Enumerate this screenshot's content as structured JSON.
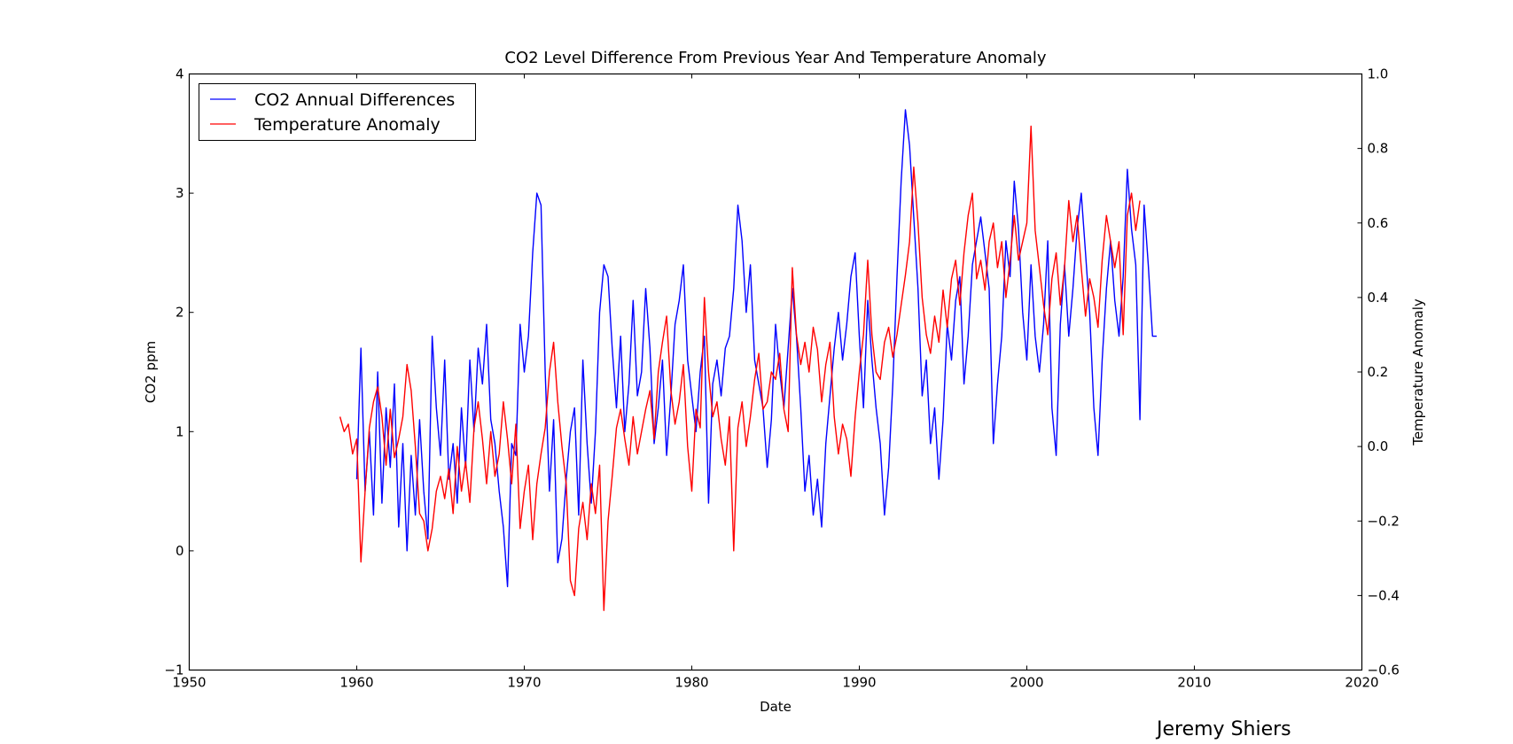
{
  "chart_data": {
    "type": "line",
    "title": "CO2 Level Difference From Previous Year And Temperature Anomaly",
    "xlabel": "Date",
    "ylabel": "CO2 ppm",
    "ylabel_right": "Temperature Anomaly",
    "xlim": [
      1950,
      2020
    ],
    "ylim": [
      -1,
      4
    ],
    "ylim_right": [
      -0.6,
      1.0
    ],
    "xticks": [
      "1950",
      "1960",
      "1970",
      "1980",
      "1990",
      "2000",
      "2010",
      "2020"
    ],
    "yticks": [
      "−1",
      "0",
      "1",
      "2",
      "3",
      "4"
    ],
    "yticks_right": [
      "−0.6",
      "−0.4",
      "−0.2",
      "0.0",
      "0.2",
      "0.4",
      "0.6",
      "0.8",
      "1.0"
    ],
    "grid": false,
    "legend_position": "top-left",
    "footer": "Jeremy Shiers",
    "series": [
      {
        "name": "CO2 Annual Differences",
        "axis": "left",
        "color": "#0000ff",
        "x_start": 1960.0,
        "x_step": 0.25,
        "values": [
          0.6,
          1.7,
          0.5,
          1.0,
          0.3,
          1.5,
          0.4,
          1.2,
          0.7,
          1.4,
          0.2,
          0.9,
          0.0,
          0.8,
          0.3,
          1.1,
          0.5,
          0.1,
          1.8,
          1.2,
          0.8,
          1.6,
          0.6,
          0.9,
          0.4,
          1.2,
          0.7,
          1.6,
          1.0,
          1.7,
          1.4,
          1.9,
          1.1,
          0.9,
          0.5,
          0.2,
          -0.3,
          0.9,
          0.8,
          1.9,
          1.5,
          1.8,
          2.5,
          3.0,
          2.9,
          1.5,
          0.5,
          1.1,
          -0.1,
          0.1,
          0.6,
          1.0,
          1.2,
          0.3,
          1.6,
          0.9,
          0.4,
          1.0,
          2.0,
          2.4,
          2.3,
          1.7,
          1.2,
          1.8,
          1.0,
          1.4,
          2.1,
          1.3,
          1.5,
          2.2,
          1.7,
          0.9,
          1.2,
          1.6,
          0.8,
          1.3,
          1.9,
          2.1,
          2.4,
          1.6,
          1.3,
          1.0,
          1.5,
          1.8,
          0.4,
          1.4,
          1.6,
          1.3,
          1.7,
          1.8,
          2.2,
          2.9,
          2.6,
          2.0,
          2.4,
          1.6,
          1.4,
          1.2,
          0.7,
          1.1,
          1.9,
          1.5,
          1.2,
          1.7,
          2.2,
          1.8,
          1.2,
          0.5,
          0.8,
          0.3,
          0.6,
          0.2,
          0.9,
          1.3,
          1.7,
          2.0,
          1.6,
          1.9,
          2.3,
          2.5,
          1.8,
          1.2,
          2.1,
          1.6,
          1.2,
          0.9,
          0.3,
          0.7,
          1.4,
          2.3,
          3.1,
          3.7,
          3.4,
          2.8,
          2.2,
          1.3,
          1.6,
          0.9,
          1.2,
          0.6,
          1.1,
          1.9,
          1.6,
          2.1,
          2.3,
          1.4,
          1.8,
          2.4,
          2.6,
          2.8,
          2.5,
          2.2,
          0.9,
          1.4,
          1.8,
          2.6,
          2.3,
          3.1,
          2.7,
          2.0,
          1.6,
          2.4,
          1.8,
          1.5,
          1.9,
          2.6,
          1.2,
          0.8,
          1.9,
          2.4,
          1.8,
          2.2,
          2.7,
          3.0,
          2.5,
          2.0,
          1.2,
          0.8,
          1.6,
          2.2,
          2.6,
          2.1,
          1.8,
          2.3,
          3.2,
          2.7,
          2.4,
          1.1,
          2.9,
          2.4,
          1.8,
          1.8
        ]
      },
      {
        "name": "Temperature Anomaly",
        "axis": "right",
        "color": "#ff0000",
        "x_start": 1959.0,
        "x_step": 0.25,
        "values": [
          0.08,
          0.04,
          0.06,
          -0.02,
          0.02,
          -0.31,
          -0.12,
          0.05,
          0.12,
          0.16,
          0.08,
          -0.05,
          0.1,
          -0.03,
          0.02,
          0.08,
          0.22,
          0.15,
          0.0,
          -0.18,
          -0.2,
          -0.28,
          -0.22,
          -0.12,
          -0.08,
          -0.14,
          -0.06,
          -0.18,
          0.0,
          -0.12,
          -0.04,
          -0.15,
          0.05,
          0.12,
          0.02,
          -0.1,
          0.04,
          -0.08,
          -0.02,
          0.12,
          0.02,
          -0.1,
          0.06,
          -0.22,
          -0.12,
          -0.05,
          -0.25,
          -0.1,
          -0.02,
          0.05,
          0.2,
          0.28,
          0.12,
          0.0,
          -0.1,
          -0.36,
          -0.4,
          -0.22,
          -0.15,
          -0.25,
          -0.1,
          -0.18,
          -0.05,
          -0.44,
          -0.2,
          -0.08,
          0.05,
          0.1,
          0.02,
          -0.05,
          0.08,
          -0.02,
          0.04,
          0.1,
          0.15,
          0.02,
          0.2,
          0.28,
          0.35,
          0.15,
          0.06,
          0.12,
          0.22,
          0.0,
          -0.12,
          0.1,
          0.05,
          0.4,
          0.2,
          0.08,
          0.12,
          0.02,
          -0.05,
          0.08,
          -0.28,
          0.05,
          0.12,
          0.0,
          0.08,
          0.18,
          0.25,
          0.1,
          0.12,
          0.2,
          0.18,
          0.25,
          0.1,
          0.04,
          0.48,
          0.3,
          0.22,
          0.28,
          0.2,
          0.32,
          0.26,
          0.12,
          0.22,
          0.28,
          0.08,
          -0.02,
          0.06,
          0.02,
          -0.08,
          0.08,
          0.2,
          0.3,
          0.5,
          0.3,
          0.2,
          0.18,
          0.28,
          0.32,
          0.24,
          0.3,
          0.38,
          0.46,
          0.55,
          0.75,
          0.6,
          0.4,
          0.3,
          0.25,
          0.35,
          0.28,
          0.42,
          0.32,
          0.45,
          0.5,
          0.38,
          0.52,
          0.62,
          0.68,
          0.45,
          0.5,
          0.42,
          0.55,
          0.6,
          0.48,
          0.55,
          0.4,
          0.5,
          0.62,
          0.5,
          0.55,
          0.6,
          0.86,
          0.58,
          0.48,
          0.38,
          0.3,
          0.45,
          0.52,
          0.38,
          0.48,
          0.66,
          0.55,
          0.62,
          0.48,
          0.35,
          0.45,
          0.4,
          0.32,
          0.5,
          0.62,
          0.55,
          0.48,
          0.55,
          0.3,
          0.62,
          0.68,
          0.58,
          0.66
        ]
      }
    ]
  }
}
